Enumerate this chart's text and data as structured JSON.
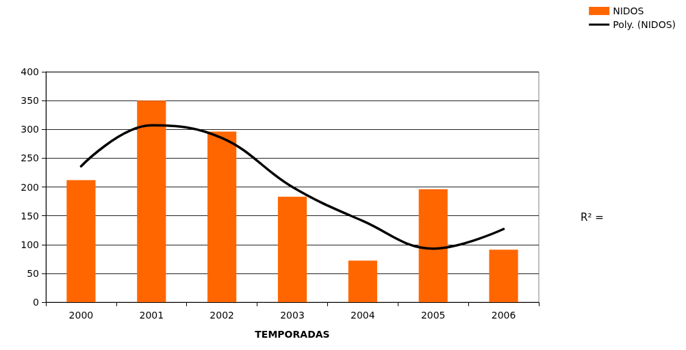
{
  "chart_data": {
    "type": "bar",
    "xlabel": "TEMPORADAS",
    "categories": [
      "2000",
      "2001",
      "2002",
      "2003",
      "2004",
      "2005",
      "2006"
    ],
    "series": [
      {
        "name": "NIDOS",
        "color": "#ff6600",
        "values": [
          212,
          350,
          296,
          183,
          72,
          196,
          91
        ]
      },
      {
        "name": "Poly. (NIDOS)",
        "type": "line",
        "color": "#000000",
        "values": [
          236,
          307,
          285,
          200,
          141,
          93,
          127
        ]
      }
    ],
    "ylim": [
      0,
      400
    ],
    "yticks": [
      0,
      50,
      100,
      150,
      200,
      250,
      300,
      350,
      400
    ],
    "grid": "y",
    "legend": "top right",
    "marker": "none",
    "annotations": [
      "R² ="
    ]
  }
}
